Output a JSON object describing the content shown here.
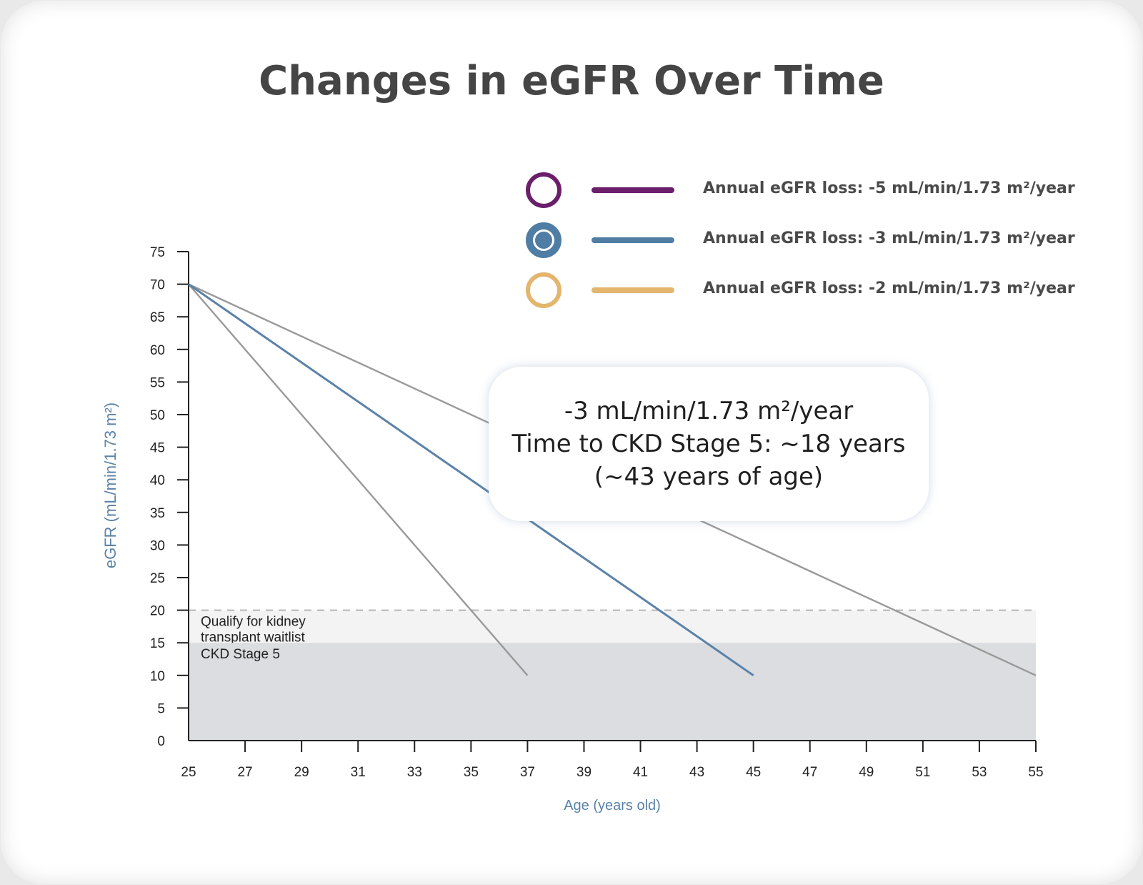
{
  "chart_data": {
    "type": "line",
    "title": "Changes in eGFR Over Time",
    "xlabel": "Age (years old)",
    "ylabel": "eGFR (mL/min/1.73 m²)",
    "xlim": [
      25,
      55
    ],
    "ylim": [
      0,
      75
    ],
    "x_ticks": [
      25,
      27,
      29,
      31,
      33,
      35,
      37,
      39,
      41,
      43,
      45,
      47,
      49,
      51,
      53,
      55
    ],
    "y_ticks": [
      0,
      5,
      10,
      15,
      20,
      25,
      30,
      35,
      40,
      45,
      50,
      55,
      60,
      65,
      70,
      75
    ],
    "series": [
      {
        "name": "Annual eGFR loss: -5 mL/min/1.73 m²/year",
        "color": "#6b1f6b",
        "line_color": "#999999",
        "x": [
          25,
          37
        ],
        "y": [
          70,
          10
        ]
      },
      {
        "name": "Annual eGFR loss: -3 mL/min/1.73 m²/year",
        "color": "#4f7da4",
        "line_color": "#5b82a8",
        "x": [
          25,
          45
        ],
        "y": [
          70,
          10
        ]
      },
      {
        "name": "Annual eGFR loss: -2 mL/min/1.73 m²/year",
        "color": "#e3b56e",
        "line_color": "#999999",
        "x": [
          25,
          55
        ],
        "y": [
          70,
          10
        ]
      }
    ],
    "bands": [
      {
        "label_lines": [
          "Qualify for kidney",
          "transplant waitlist"
        ],
        "y_from": 15,
        "y_to": 20,
        "color": "#f3f3f4",
        "dashed_top": true
      },
      {
        "label_lines": [
          "CKD Stage 5"
        ],
        "y_from": 0,
        "y_to": 15,
        "color": "#dcdde0"
      }
    ],
    "annotation": {
      "lines": [
        "-3 mL/min/1.73 m²/year",
        "Time to CKD Stage 5: ~18 years",
        "(~43 years of age)"
      ]
    },
    "legend_position": "top-right"
  }
}
